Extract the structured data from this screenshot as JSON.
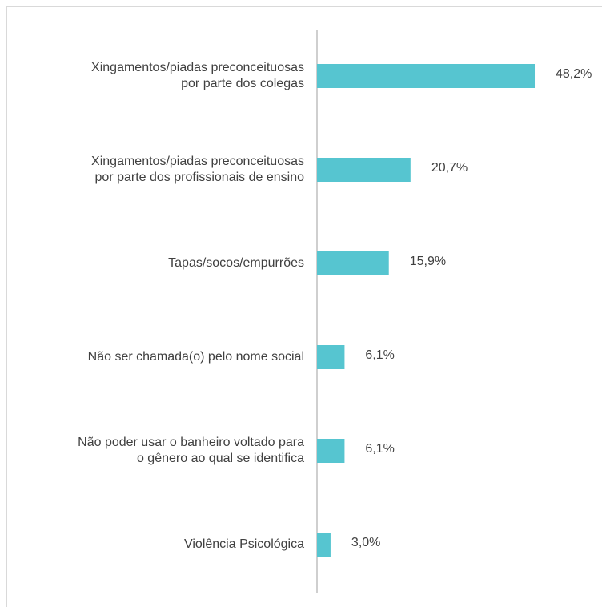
{
  "chart_data": {
    "type": "barh",
    "categories": [
      [
        "Xingamentos/piadas preconceituosas",
        "por parte dos colegas"
      ],
      [
        "Xingamentos/piadas preconceituosas",
        "por parte dos profissionais de ensino"
      ],
      [
        "Tapas/socos/empurrões"
      ],
      [
        "Não ser chamada(o) pelo nome social"
      ],
      [
        "Não poder usar o banheiro voltado para",
        "o gênero ao qual se identifica"
      ],
      [
        "Violência Psicológica"
      ]
    ],
    "values": [
      48.2,
      20.7,
      15.9,
      6.1,
      6.1,
      3.0
    ],
    "value_labels": [
      "48,2%",
      "20,7%",
      "15,9%",
      "6,1%",
      "6,1%",
      "3,0%"
    ],
    "color": "#56c5d0",
    "xlim": [
      0,
      60
    ]
  }
}
